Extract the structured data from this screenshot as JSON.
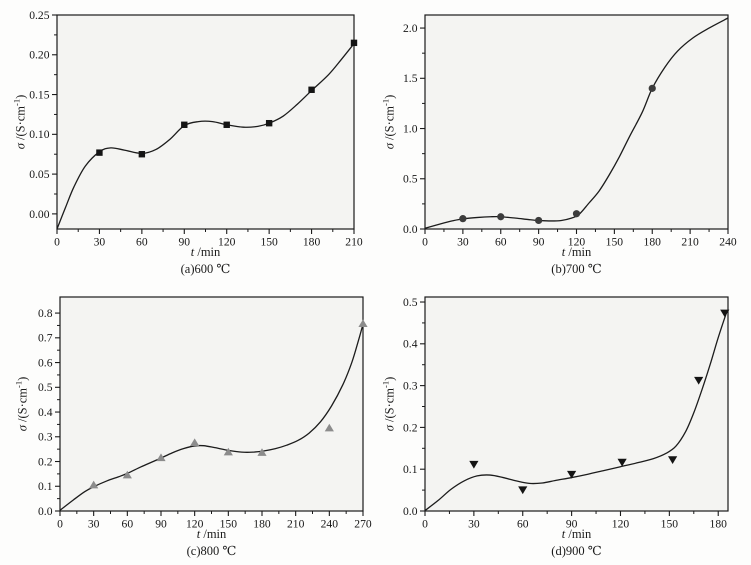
{
  "figure": {
    "background": "#fdfdfc",
    "plot_background": "#f4f4f2",
    "axis_color": "#1a1a1a",
    "curve_color": "#1c1c1c",
    "tick_label_color": "#161616"
  },
  "chart_data": [
    {
      "id": "a",
      "type": "line",
      "caption": "(a)600 ℃",
      "xlabel": {
        "var": "t",
        "rest": " /min"
      },
      "ylabel": {
        "var": "σ",
        "rest": " /(S·cm",
        "sup": "-1",
        "close": ")"
      },
      "xlim": [
        0,
        210
      ],
      "ylim": [
        -0.019,
        0.25
      ],
      "xticks": {
        "values": [
          0,
          30,
          60,
          90,
          120,
          150,
          180,
          210
        ],
        "labels": [
          "0",
          "30",
          "60",
          "90",
          "120",
          "150",
          "180",
          "210"
        ]
      },
      "yticks": {
        "values": [
          0,
          0.05,
          0.1,
          0.15,
          0.2,
          0.25
        ],
        "labels": [
          "0.00",
          "0.05",
          "0.10",
          "0.15",
          "0.20",
          "0.25"
        ]
      },
      "marker": {
        "shape": "square",
        "color": "#141414"
      },
      "points": [
        [
          30,
          0.077
        ],
        [
          60,
          0.075
        ],
        [
          90,
          0.112
        ],
        [
          120,
          0.112
        ],
        [
          150,
          0.114
        ],
        [
          180,
          0.156
        ],
        [
          210,
          0.215
        ]
      ],
      "curve": [
        [
          0,
          -0.019
        ],
        [
          6,
          0.008
        ],
        [
          12,
          0.034
        ],
        [
          20,
          0.06
        ],
        [
          30,
          0.078
        ],
        [
          38,
          0.083
        ],
        [
          48,
          0.08
        ],
        [
          60,
          0.076
        ],
        [
          70,
          0.081
        ],
        [
          80,
          0.094
        ],
        [
          90,
          0.111
        ],
        [
          100,
          0.116
        ],
        [
          110,
          0.116
        ],
        [
          120,
          0.112
        ],
        [
          132,
          0.109
        ],
        [
          142,
          0.11
        ],
        [
          150,
          0.114
        ],
        [
          160,
          0.123
        ],
        [
          170,
          0.138
        ],
        [
          180,
          0.155
        ],
        [
          192,
          0.175
        ],
        [
          201,
          0.194
        ],
        [
          210,
          0.214
        ]
      ]
    },
    {
      "id": "b",
      "type": "line",
      "caption": "(b)700 ℃",
      "xlabel": {
        "var": "t",
        "rest": " /min"
      },
      "ylabel": {
        "var": "σ",
        "rest": " /(S·cm",
        "sup": "-1",
        "close": ")"
      },
      "xlim": [
        0,
        240
      ],
      "ylim": [
        0,
        2.13
      ],
      "xticks": {
        "values": [
          0,
          30,
          60,
          90,
          120,
          150,
          180,
          210,
          240
        ],
        "labels": [
          "0",
          "30",
          "60",
          "90",
          "120",
          "150",
          "180",
          "210",
          "240"
        ]
      },
      "yticks": {
        "values": [
          0,
          0.5,
          1.0,
          1.5,
          2.0
        ],
        "labels": [
          "0.0",
          "0.5",
          "1.0",
          "1.5",
          "2.0"
        ]
      },
      "marker": {
        "shape": "circle",
        "color": "#3c3c3c"
      },
      "points": [
        [
          30,
          0.103
        ],
        [
          60,
          0.122
        ],
        [
          90,
          0.085
        ],
        [
          120,
          0.152
        ],
        [
          180,
          1.4
        ]
      ],
      "curve": [
        [
          0,
          0.008
        ],
        [
          12,
          0.05
        ],
        [
          22,
          0.082
        ],
        [
          30,
          0.101
        ],
        [
          42,
          0.115
        ],
        [
          52,
          0.122
        ],
        [
          60,
          0.122
        ],
        [
          72,
          0.108
        ],
        [
          82,
          0.094
        ],
        [
          90,
          0.085
        ],
        [
          100,
          0.08
        ],
        [
          108,
          0.085
        ],
        [
          116,
          0.108
        ],
        [
          122,
          0.145
        ],
        [
          130,
          0.26
        ],
        [
          138,
          0.38
        ],
        [
          146,
          0.54
        ],
        [
          154,
          0.72
        ],
        [
          162,
          0.92
        ],
        [
          172,
          1.16
        ],
        [
          180,
          1.4
        ],
        [
          190,
          1.61
        ],
        [
          200,
          1.77
        ],
        [
          212,
          1.9
        ],
        [
          225,
          2.0
        ],
        [
          240,
          2.1
        ]
      ]
    },
    {
      "id": "c",
      "type": "line",
      "caption": "(c)800 ℃",
      "xlabel": {
        "var": "t",
        "rest": " /min"
      },
      "ylabel": {
        "var": "σ",
        "rest": " /(S·cm",
        "sup": "-1",
        "close": ")"
      },
      "xlim": [
        0,
        270
      ],
      "ylim": [
        0,
        0.865
      ],
      "xticks": {
        "values": [
          0,
          30,
          60,
          90,
          120,
          150,
          180,
          210,
          240,
          270
        ],
        "labels": [
          "0",
          "30",
          "60",
          "90",
          "120",
          "150",
          "180",
          "210",
          "240",
          "270"
        ]
      },
      "yticks": {
        "values": [
          0,
          0.1,
          0.2,
          0.3,
          0.4,
          0.5,
          0.6,
          0.7,
          0.8
        ],
        "labels": [
          "0.0",
          "0.1",
          "0.2",
          "0.3",
          "0.4",
          "0.5",
          "0.6",
          "0.7",
          "0.8"
        ]
      },
      "marker": {
        "shape": "triangle-up",
        "color": "#8c8c8c"
      },
      "points": [
        [
          30,
          0.105
        ],
        [
          60,
          0.145
        ],
        [
          90,
          0.215
        ],
        [
          120,
          0.276
        ],
        [
          150,
          0.238
        ],
        [
          180,
          0.236
        ],
        [
          240,
          0.335
        ],
        [
          270,
          0.757
        ]
      ],
      "curve": [
        [
          0,
          0.003
        ],
        [
          12,
          0.045
        ],
        [
          22,
          0.078
        ],
        [
          30,
          0.098
        ],
        [
          42,
          0.122
        ],
        [
          52,
          0.138
        ],
        [
          60,
          0.152
        ],
        [
          72,
          0.178
        ],
        [
          82,
          0.198
        ],
        [
          90,
          0.214
        ],
        [
          100,
          0.235
        ],
        [
          110,
          0.252
        ],
        [
          120,
          0.263
        ],
        [
          128,
          0.264
        ],
        [
          138,
          0.256
        ],
        [
          150,
          0.245
        ],
        [
          162,
          0.238
        ],
        [
          172,
          0.238
        ],
        [
          182,
          0.243
        ],
        [
          192,
          0.252
        ],
        [
          202,
          0.266
        ],
        [
          212,
          0.285
        ],
        [
          222,
          0.315
        ],
        [
          232,
          0.36
        ],
        [
          242,
          0.425
        ],
        [
          252,
          0.51
        ],
        [
          260,
          0.6
        ],
        [
          266,
          0.69
        ],
        [
          270,
          0.755
        ]
      ]
    },
    {
      "id": "d",
      "type": "line",
      "caption": "(d)900 ℃",
      "xlabel": {
        "var": "t",
        "rest": " /min"
      },
      "ylabel": {
        "var": "σ",
        "rest": " /(S·cm",
        "sup": "-1",
        "close": ")"
      },
      "xlim": [
        0,
        186
      ],
      "ylim": [
        0,
        0.512
      ],
      "xticks": {
        "values": [
          0,
          30,
          60,
          90,
          120,
          150,
          180
        ],
        "labels": [
          "0",
          "30",
          "60",
          "90",
          "120",
          "150",
          "180"
        ]
      },
      "yticks": {
        "values": [
          0,
          0.1,
          0.2,
          0.3,
          0.4,
          0.5
        ],
        "labels": [
          "0.0",
          "0.1",
          "0.2",
          "0.3",
          "0.4",
          "0.5"
        ]
      },
      "marker": {
        "shape": "triangle-down",
        "color": "#141414"
      },
      "points": [
        [
          30,
          0.112
        ],
        [
          60,
          0.051
        ],
        [
          90,
          0.088
        ],
        [
          121,
          0.117
        ],
        [
          152,
          0.123
        ],
        [
          168,
          0.313
        ],
        [
          184,
          0.474
        ]
      ],
      "curve": [
        [
          0,
          0.001
        ],
        [
          8,
          0.025
        ],
        [
          16,
          0.052
        ],
        [
          24,
          0.072
        ],
        [
          32,
          0.084
        ],
        [
          40,
          0.086
        ],
        [
          48,
          0.08
        ],
        [
          56,
          0.072
        ],
        [
          64,
          0.066
        ],
        [
          72,
          0.067
        ],
        [
          80,
          0.073
        ],
        [
          90,
          0.08
        ],
        [
          100,
          0.088
        ],
        [
          110,
          0.097
        ],
        [
          120,
          0.106
        ],
        [
          130,
          0.115
        ],
        [
          140,
          0.125
        ],
        [
          148,
          0.138
        ],
        [
          154,
          0.155
        ],
        [
          160,
          0.19
        ],
        [
          165,
          0.235
        ],
        [
          170,
          0.29
        ],
        [
          175,
          0.35
        ],
        [
          180,
          0.415
        ],
        [
          185,
          0.474
        ]
      ]
    }
  ]
}
